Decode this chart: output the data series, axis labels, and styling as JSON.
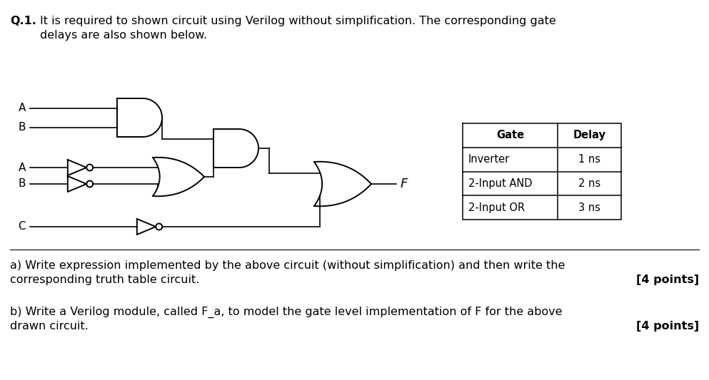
{
  "bg_color": "#ffffff",
  "black": "#000000",
  "title_bold": "Q.1.",
  "title_line1": "It is required to shown circuit using Verilog without simplification. The corresponding gate",
  "title_line2": "delays are also shown below.",
  "label_A1": "A",
  "label_B1": "B",
  "label_A2": "A",
  "label_B2": "B",
  "label_C": "C",
  "label_F": "F",
  "table_headers": [
    "Gate",
    "Delay"
  ],
  "table_rows": [
    [
      "Inverter",
      "1 ns"
    ],
    [
      "2-Input AND",
      "2 ns"
    ],
    [
      "2-Input OR",
      "3 ns"
    ]
  ],
  "qa_line1": "a) Write expression implemented by the above circuit (without simplification) and then write the",
  "qa_line2": "corresponding truth table circuit.",
  "qa_pts": "[4 points]",
  "qb_line1": "b) Write a Verilog module, called F_a, to model the gate level implementation of F for the above",
  "qb_line2": "drawn circuit.",
  "qb_pts": "[4 points]",
  "font_size_title": 11.5,
  "font_size_body": 11.5,
  "font_size_gate_label": 11,
  "font_size_table": 10.5,
  "lw_gate": 1.4,
  "lw_wire": 1.2,
  "lw_table": 1.1
}
